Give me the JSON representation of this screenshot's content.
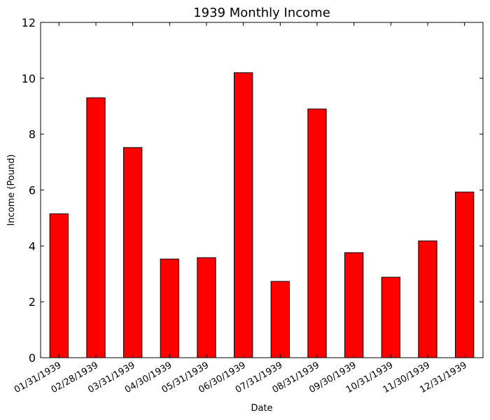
{
  "chart_data": {
    "type": "bar",
    "title": "1939 Monthly Income",
    "xlabel": "Date",
    "ylabel": "Income (Pound)",
    "categories": [
      "01/31/1939",
      "02/28/1939",
      "03/31/1939",
      "04/30/1939",
      "05/31/1939",
      "06/30/1939",
      "07/31/1939",
      "08/31/1939",
      "09/30/1939",
      "10/31/1939",
      "11/30/1939",
      "12/31/1939"
    ],
    "values": [
      5.15,
      9.3,
      7.52,
      3.53,
      3.58,
      10.2,
      2.73,
      8.9,
      3.76,
      2.88,
      4.18,
      5.93
    ],
    "ylim": [
      0,
      12
    ],
    "yticks": [
      0,
      2,
      4,
      6,
      8,
      10,
      12
    ],
    "bar_color": "#ff0000",
    "edge_color": "#000000",
    "grid": false,
    "legend": "none"
  }
}
